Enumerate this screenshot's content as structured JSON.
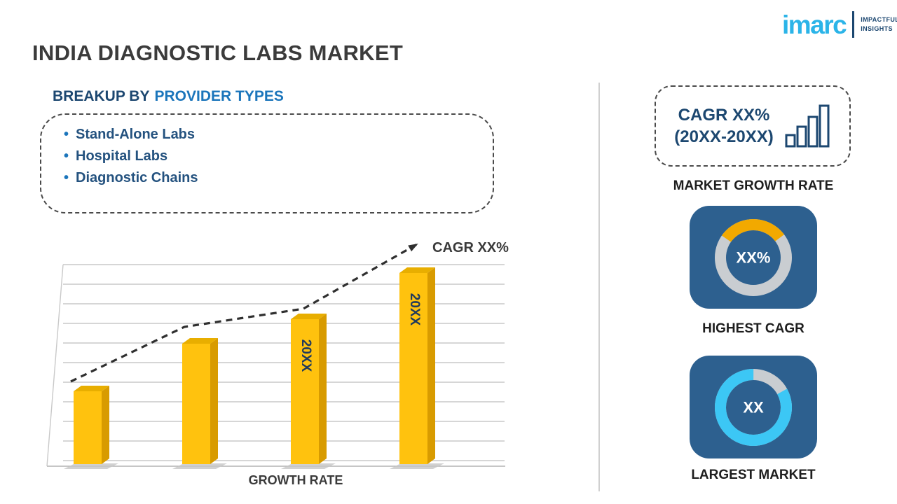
{
  "page": {
    "title": "INDIA DIAGNOSTIC LABS MARKET"
  },
  "logo": {
    "brand": "imarc",
    "tagline_line1": "IMPACTFUL",
    "tagline_line2": "INSIGHTS"
  },
  "breakup": {
    "heading_prefix": "BREAKUP BY",
    "heading_highlight": "PROVIDER TYPES",
    "bullet": "•",
    "items": [
      "Stand-Alone Labs",
      "Hospital Labs",
      "Diagnostic Chains"
    ]
  },
  "right_panel": {
    "cagr_line1": "CAGR XX%",
    "cagr_line2": "(20XX-20XX)",
    "market_growth_label": "MARKET GROWTH RATE"
  },
  "colors": {
    "brand_cyan": "#2BB4E8",
    "navy": "#1C4770",
    "accent_blue": "#1B75BB",
    "bar_yellow": "#FFC20E",
    "tile_blue": "#2D608F",
    "donut_gray": "#C9CDD1",
    "donut_yellow": "#F2A900",
    "donut_cyan": "#3CC7F5"
  },
  "chart_data": [
    {
      "type": "bar",
      "categories": [
        "",
        "",
        "20XX",
        "20XX"
      ],
      "values": [
        38,
        63,
        76,
        100
      ],
      "values_unit": "relative height % (placeholder infographic)",
      "ylim": [
        0,
        100
      ],
      "xlabel": "GROWTH RATE",
      "annotation": "CAGR XX%",
      "bar_color": "#FFC20E",
      "grid": true,
      "legend": false
    },
    {
      "type": "pie",
      "variant": "donut",
      "label": "HIGHEST CAGR",
      "center_text": "XX%",
      "slices": [
        {
          "name": "highlighted-share",
          "value": 30,
          "color": "#F2A900"
        },
        {
          "name": "remainder",
          "value": 70,
          "color": "#C9CDD1"
        }
      ]
    },
    {
      "type": "pie",
      "variant": "donut",
      "label": "LARGEST MARKET",
      "center_text": "XX",
      "slices": [
        {
          "name": "highlighted-share",
          "value": 83,
          "color": "#3CC7F5"
        },
        {
          "name": "remainder",
          "value": 17,
          "color": "#C9CDD1"
        }
      ]
    }
  ]
}
